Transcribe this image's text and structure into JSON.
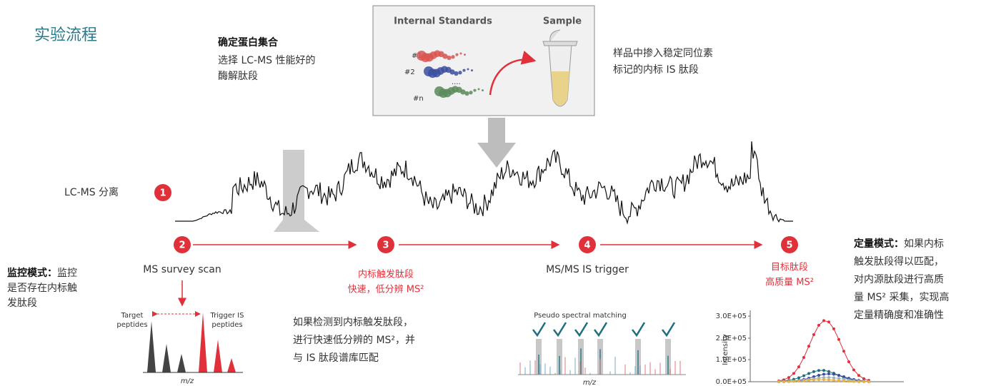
{
  "header": {
    "title": "实验流程"
  },
  "step_protein": {
    "title": "确定蛋白集合",
    "lines": [
      "选择 LC-MS 性能好的",
      "酶解肽段"
    ]
  },
  "box": {
    "left_title": "Internal Standards",
    "right_title": "Sample",
    "labels": [
      "#1",
      "#2",
      "....",
      "#n"
    ]
  },
  "spike_note": [
    "样品中掺入稳定同位素",
    "标记的内标 IS 肽段"
  ],
  "lcms": {
    "label": "LC-MS 分离"
  },
  "steps": [
    "1",
    "2",
    "3",
    "4",
    "5"
  ],
  "survey": {
    "title": "MS survey scan",
    "mode_bold": "监控模式：",
    "mode_lines": [
      "监控",
      "是否存在内标触",
      "发肽段"
    ],
    "left_label": [
      "Target",
      "peptides"
    ],
    "right_label": [
      "Trigger IS",
      "peptides"
    ],
    "axis": "m/z"
  },
  "trigger": {
    "lines": [
      "内标触发肽段",
      "快速，低分辨 MS²"
    ],
    "paragraph": [
      "如果检测到内标触发肽段，",
      "进行快速低分辨的 MS²，并",
      "与 IS 肽段谱库匹配"
    ]
  },
  "msms": {
    "title": "MS/MS IS trigger",
    "subtitle": "Pseudo spectral matching",
    "axis": "m/z"
  },
  "target": {
    "lines": [
      "目标肽段",
      "高质量 MS²"
    ]
  },
  "quant": {
    "bold": "定量模式：",
    "lines": [
      "如果内标",
      "触发肽段得以匹配，",
      "对内源肽段进行高质",
      "量 MS² 采集，实现高",
      "定量精确度和准确性"
    ]
  },
  "intensity_chart": {
    "axis_label": "Intensity",
    "ticks": [
      "3.0E+05",
      "2.0E+05",
      "1.0E+05",
      "0.0E+05"
    ]
  }
}
